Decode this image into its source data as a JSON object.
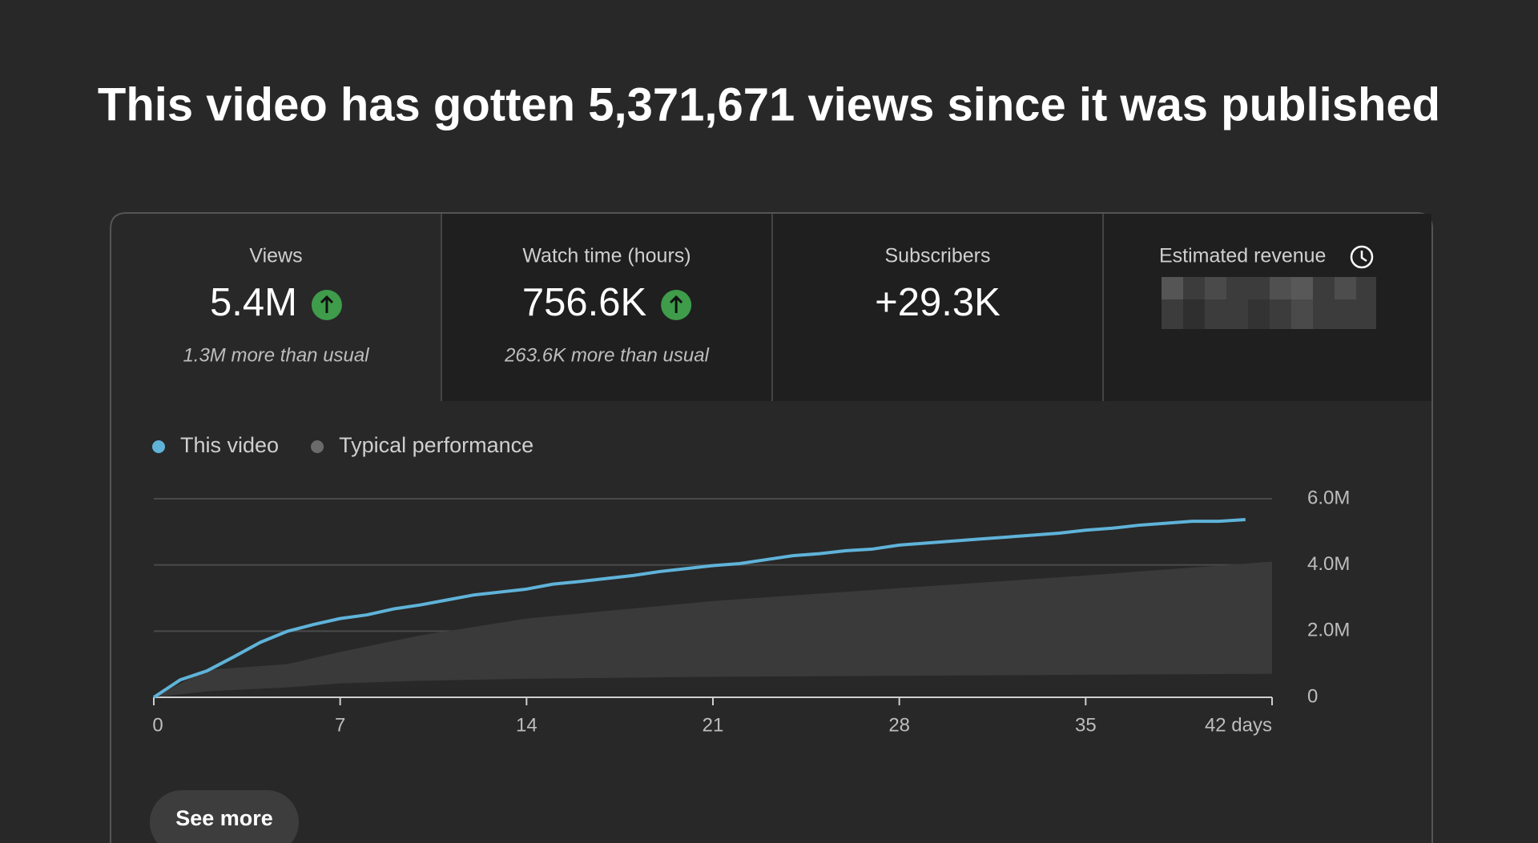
{
  "header": {
    "title": "This video has gotten 5,371,671 views since it was published"
  },
  "metrics": [
    {
      "label": "Views",
      "value": "5.4M",
      "note": "1.3M more than usual"
    },
    {
      "label": "Watch time (hours)",
      "value": "756.6K",
      "note": "263.6K more than usual"
    },
    {
      "label": "Subscribers",
      "value": "+29.3K"
    },
    {
      "label": "Estimated revenue"
    }
  ],
  "chart_data": {
    "type": "line",
    "xlim": [
      0,
      42
    ],
    "xticks": [
      0,
      7,
      14,
      21,
      28,
      35,
      {
        "value": 42,
        "label": "42 days"
      }
    ],
    "ylim": [
      0,
      6000000
    ],
    "yticks": [
      0,
      {
        "value": 2000000,
        "label": "2.0M"
      },
      {
        "value": 4000000,
        "label": "4.0M"
      },
      {
        "value": 6000000,
        "label": "6.0M"
      }
    ],
    "grid": true,
    "series": [
      {
        "name": "This video",
        "color": "#5fb3d9",
        "x": [
          0,
          1,
          2,
          3,
          4,
          5,
          6,
          7,
          8,
          9,
          10,
          11,
          12,
          13,
          14,
          15,
          16,
          17,
          18,
          19,
          20,
          21,
          22,
          23,
          24,
          25,
          26,
          27,
          28,
          29,
          30,
          31,
          32,
          33,
          34,
          35,
          36,
          37,
          38,
          39,
          40,
          41
        ],
        "values": [
          0,
          530000,
          800000,
          1220000,
          1660000,
          1990000,
          2200000,
          2380000,
          2490000,
          2670000,
          2790000,
          2940000,
          3090000,
          3180000,
          3270000,
          3420000,
          3500000,
          3590000,
          3680000,
          3800000,
          3890000,
          3980000,
          4040000,
          4160000,
          4280000,
          4340000,
          4430000,
          4480000,
          4600000,
          4660000,
          4720000,
          4780000,
          4840000,
          4900000,
          4960000,
          5050000,
          5110000,
          5200000,
          5260000,
          5320000,
          5320000,
          5370000
        ]
      },
      {
        "name": "Typical performance",
        "color": "#6b6b6b",
        "band_color": "#3a3a3a",
        "x": [
          0,
          2,
          5,
          7,
          10,
          14,
          21,
          28,
          35,
          42
        ],
        "values": [
          0,
          830000,
          1000000,
          1370000,
          1870000,
          2380000,
          2910000,
          3300000,
          3680000,
          4100000
        ],
        "lower": [
          0,
          180000,
          300000,
          420000,
          500000,
          560000,
          620000,
          650000,
          680000,
          710000
        ]
      }
    ]
  },
  "button": {
    "label": "See more"
  }
}
